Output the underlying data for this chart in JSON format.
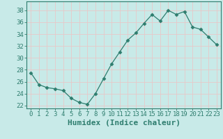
{
  "x": [
    0,
    1,
    2,
    3,
    4,
    5,
    6,
    7,
    8,
    9,
    10,
    11,
    12,
    13,
    14,
    15,
    16,
    17,
    18,
    19,
    20,
    21,
    22,
    23
  ],
  "y": [
    27.5,
    25.5,
    25.0,
    24.8,
    24.5,
    23.2,
    22.5,
    22.2,
    24.0,
    26.5,
    29.0,
    31.0,
    33.0,
    34.2,
    35.8,
    37.3,
    36.2,
    38.0,
    37.3,
    37.8,
    35.2,
    34.8,
    33.5,
    32.2
  ],
  "line_color": "#2e7d6e",
  "marker": "D",
  "marker_size": 2.5,
  "bg_color": "#c8eae8",
  "grid_color": "#e8c8c8",
  "axis_color": "#2e7d6e",
  "xlabel": "Humidex (Indice chaleur)",
  "ylim": [
    21.5,
    39.5
  ],
  "yticks": [
    22,
    24,
    26,
    28,
    30,
    32,
    34,
    36,
    38
  ],
  "xticks": [
    0,
    1,
    2,
    3,
    4,
    5,
    6,
    7,
    8,
    9,
    10,
    11,
    12,
    13,
    14,
    15,
    16,
    17,
    18,
    19,
    20,
    21,
    22,
    23
  ],
  "tick_fontsize": 6.5,
  "xlabel_fontsize": 8
}
